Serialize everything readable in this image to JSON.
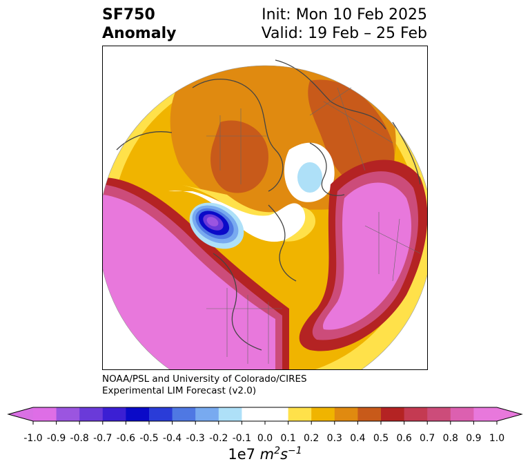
{
  "title": {
    "variable": "SF750",
    "kind": "Anomaly",
    "init": "Init: Mon 10 Feb 2025",
    "valid": "Valid: 19 Feb – 25 Feb"
  },
  "credit": {
    "line1": "NOAA/PSL and University of Colorado/CIRES",
    "line2": "Experimental LIM Forecast (v2.0)"
  },
  "colorbar": {
    "levels": [
      "-1.0",
      "-0.9",
      "-0.8",
      "-0.7",
      "-0.6",
      "-0.5",
      "-0.4",
      "-0.3",
      "-0.2",
      "-0.1",
      "0.0",
      "0.1",
      "0.2",
      "0.3",
      "0.4",
      "0.5",
      "0.6",
      "0.7",
      "0.8",
      "0.9",
      "1.0"
    ],
    "colors": [
      "#de6ee6",
      "#9b55e0",
      "#6a3ad9",
      "#3b1fd3",
      "#0a0ac8",
      "#2a3cd8",
      "#4f78e3",
      "#78aaf0",
      "#aee0f8",
      "#ffffff",
      "#ffffff",
      "#ffe14a",
      "#f0b400",
      "#e08a10",
      "#c85a1a",
      "#b42323",
      "#c43a52",
      "#cc4c7a",
      "#dc60b0",
      "#e878dc"
    ],
    "under_color": "#d970e4",
    "over_color": "#e878dc",
    "units_prefix": "1e7 ",
    "units_m": "m",
    "units_m_exp": "2",
    "units_s": "s",
    "units_s_exp": "−1"
  }
}
